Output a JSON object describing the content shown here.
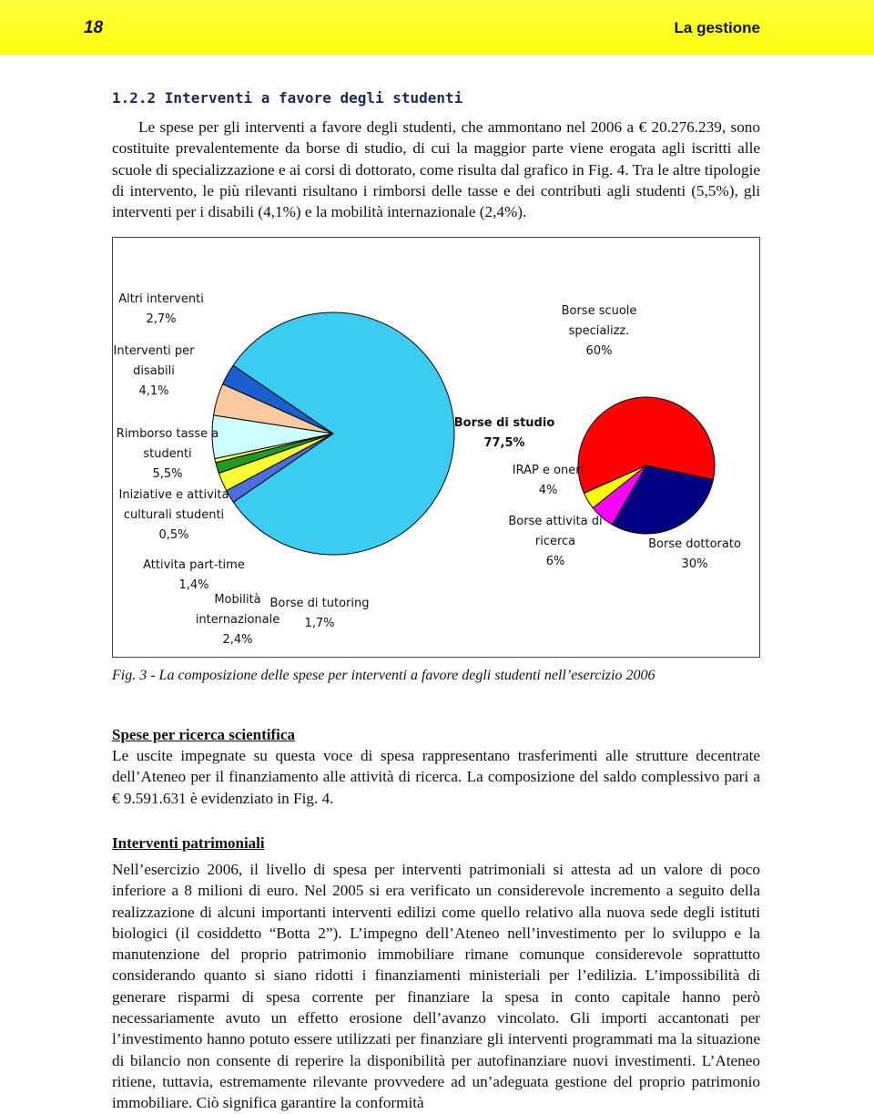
{
  "header": {
    "page_number": "18",
    "title": "La gestione"
  },
  "section_1": {
    "title": "1.2.2 Interventi a favore degli studenti",
    "paragraph": "Le spese per gli interventi a favore degli studenti, che ammontano nel 2006 a € 20.276.239, sono costituite prevalentemente da borse di studio, di cui la maggior parte viene erogata agli iscritti alle scuole di specializzazione e ai corsi di dottorato, come risulta dal grafico in Fig. 4. Tra le altre tipologie di intervento, le più rilevanti risultano i rimborsi delle tasse e dei contributi agli studenti (5,5%), gli interventi per i disabili (4,1%) e la mobilità internazionale (2,4%)."
  },
  "chart_data": {
    "type": "pie-of-pie",
    "pies": [
      {
        "categories": [
          "Borse di tutoring",
          "Mobilità internazionale",
          "Attivita part-time",
          "Iniziative e attivita culturali studenti",
          "Rimborso tasse a studenti",
          "Interventi per disabili",
          "Altri interventi",
          "Borse di studio"
        ],
        "values": [
          1.7,
          2.4,
          1.4,
          0.5,
          5.5,
          4.1,
          2.7,
          77.5
        ],
        "value_labels": [
          "1,7%",
          "2,4%",
          "1,4%",
          "0,5%",
          "5,5%",
          "4,1%",
          "2,7%",
          "77,5%"
        ],
        "colors": [
          "#4a6ee0",
          "#ffff33",
          "#1f9a1f",
          "#ffff66",
          "#ccffff",
          "#f9c9a0",
          "#1a5fd0",
          "#3cccf2"
        ]
      },
      {
        "categories": [
          "Borse scuole specializz.",
          "Borse dottorato",
          "Borse attivita di ricerca",
          "IRAP e oneri"
        ],
        "values": [
          60,
          30,
          6,
          4
        ],
        "value_labels": [
          "60%",
          "30%",
          "6%",
          "4%"
        ],
        "colors": [
          "#ff0000",
          "#000080",
          "#ff00ff",
          "#ffff00"
        ]
      }
    ]
  },
  "caption": "Fig. 3 - La composizione delle spese per interventi a favore degli studenti nell’esercizio 2006",
  "section_2": {
    "title": "Spese per ricerca scientifica",
    "paragraph": "Le uscite impegnate su questa voce di spesa rappresentano trasferimenti alle strutture decentrate dell’Ateneo per il finanziamento alle attività di ricerca. La composizione del saldo complessivo pari a € 9.591.631 è evidenziato in Fig. 4."
  },
  "section_3": {
    "title": "Interventi patrimoniali",
    "paragraph": "Nell’esercizio 2006, il livello di spesa per interventi patrimoniali si attesta ad un valore di poco inferiore a 8 milioni di euro. Nel 2005 si era verificato un considerevole incremento a seguito della realizzazione di alcuni importanti interventi edilizi come quello relativo alla nuova sede degli istituti biologici (il cosiddetto “Botta 2”).  L’impegno dell’Ateneo nell’investimento per lo sviluppo e la manutenzione del proprio patrimonio immobiliare rimane comunque considerevole soprattutto considerando quanto si siano ridotti i finanziamenti ministeriali per l’edilizia. L’impossibilità di generare risparmi di spesa corrente per finanziare la spesa in conto capitale hanno però necessariamente avuto un effetto erosione  dell’avanzo vincolato. Gli importi accantonati per l’investimento hanno potuto essere utilizzati per finanziare gli interventi programmati ma la situazione di bilancio non consente di reperire la disponibilità per autofinanziare nuovi investimenti. L’Ateneo ritiene, tuttavia, estremamente rilevante provvedere ad un’adeguata gestione del proprio patrimonio immobiliare. Ciò significa garantire la conformità"
  }
}
